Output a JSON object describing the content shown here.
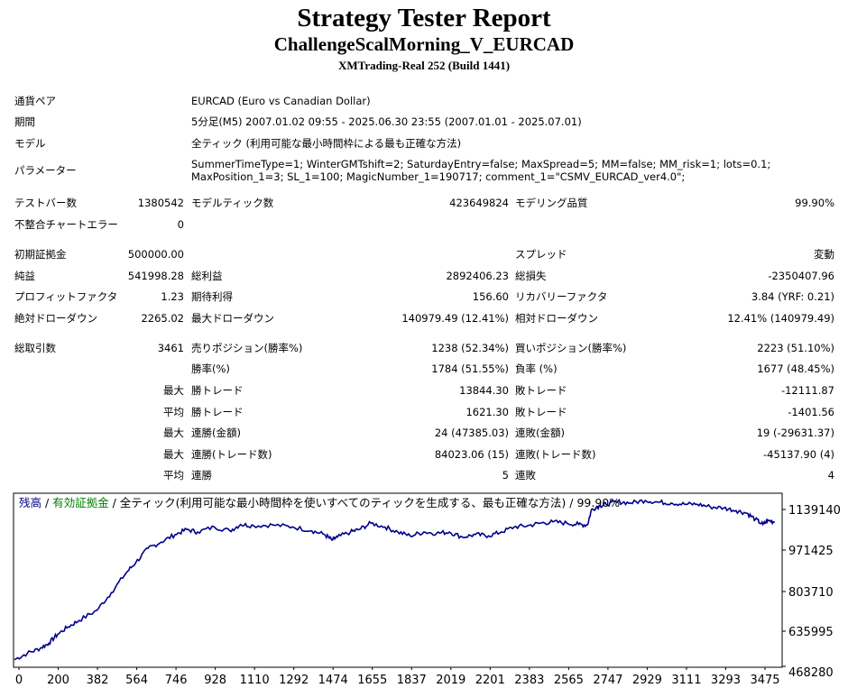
{
  "header": {
    "title": "Strategy Tester Report",
    "subtitle": "ChallengeScalMorning_V_EURCAD",
    "server": "XMTrading-Real 252 (Build 1441)"
  },
  "info": {
    "symbol_label": "通貨ペア",
    "symbol": "EURCAD (Euro vs Canadian Dollar)",
    "period_label": "期間",
    "period": "5分足(M5) 2007.01.02 09:55 - 2025.06.30 23:55 (2007.01.01 - 2025.07.01)",
    "model_label": "モデル",
    "model": "全ティック (利用可能な最小時間枠による最も正確な方法)",
    "params_label": "パラメーター",
    "params": "SummerTimeType=1; WinterGMTshift=2; SaturdayEntry=false; MaxSpread=5; MM=false; MM_risk=1; lots=0.1; MaxPosition_1=3; SL_1=100; MagicNumber_1=190717; comment_1=\"CSMV_EURCAD_ver4.0\";"
  },
  "test": {
    "bars_label": "テストバー数",
    "bars": "1380542",
    "ticks_label": "モデルティック数",
    "ticks": "423649824",
    "quality_label": "モデリング品質",
    "quality": "99.90%",
    "mismatch_label": "不整合チャートエラー",
    "mismatch": "0"
  },
  "results": {
    "deposit_label": "初期証拠金",
    "deposit": "500000.00",
    "spread_label": "スプレッド",
    "spread": "変動",
    "net_label": "純益",
    "net": "541998.28",
    "gross_profit_label": "総利益",
    "gross_profit": "2892406.23",
    "gross_loss_label": "総損失",
    "gross_loss": "-2350407.96",
    "pf_label": "プロフィットファクタ",
    "pf": "1.23",
    "expected_label": "期待利得",
    "expected": "156.60",
    "recovery_label": "リカバリーファクタ",
    "recovery": "3.84 (YRF: 0.21)",
    "abs_dd_label": "絶対ドローダウン",
    "abs_dd": "2265.02",
    "max_dd_label": "最大ドローダウン",
    "max_dd": "140979.49 (12.41%)",
    "rel_dd_label": "相対ドローダウン",
    "rel_dd": "12.41% (140979.49)"
  },
  "trades": {
    "total_label": "総取引数",
    "total": "3461",
    "short_label": "売りポジション(勝率%)",
    "short": "1238 (52.34%)",
    "long_label": "買いポジション(勝率%)",
    "long": "2223 (51.10%)",
    "win_rate_label": "勝率(%)",
    "win_rate": "1784 (51.55%)",
    "loss_rate_label": "負率 (%)",
    "loss_rate": "1677 (48.45%)",
    "max_label": "最大",
    "avg_label": "平均",
    "win_trade_label": "勝トレード",
    "loss_trade_label": "敗トレード",
    "max_win": "13844.30",
    "max_loss": "-12111.87",
    "avg_win": "1621.30",
    "avg_loss": "-1401.56",
    "consec_win_amt_label": "連勝(金額)",
    "consec_win_amt": "24 (47385.03)",
    "consec_loss_amt_label": "連敗(金額)",
    "consec_loss_amt": "19 (-29631.37)",
    "consec_win_cnt_label": "連勝(トレード数)",
    "consec_win_cnt": "84023.06 (15)",
    "consec_loss_cnt_label": "連敗(トレード数)",
    "consec_loss_cnt": "-45137.90 (4)",
    "avg_consec_win_label": "連勝",
    "avg_consec_win": "5",
    "avg_consec_loss_label": "連敗",
    "avg_consec_loss": "4"
  },
  "chart_data": {
    "type": "line",
    "legend": {
      "balance": "残高",
      "sep1": " / ",
      "equity": "有効証拠金",
      "sep2": " / ",
      "model": "全ティック(利用可能な最小時間枠を使いすべてのティックを生成する、最も正確な方法)",
      "sep3": " / ",
      "quality": "99.90%"
    },
    "colors": {
      "balance": "#00008b",
      "equity": "#008000",
      "frame": "#000000"
    },
    "x_ticks": [
      0,
      200,
      382,
      564,
      746,
      928,
      1110,
      1292,
      1474,
      1655,
      1837,
      2019,
      2201,
      2383,
      2565,
      2747,
      2929,
      3111,
      3293,
      3475
    ],
    "y_ticks": [
      1139140,
      971425,
      803710,
      635995,
      468280
    ],
    "xlim": [
      0,
      3560
    ],
    "ylim": [
      468280,
      1150000
    ],
    "series": [
      {
        "name": "残高",
        "x": [
          0,
          60,
          120,
          160,
          200,
          250,
          300,
          382,
          450,
          520,
          564,
          620,
          680,
          746,
          800,
          850,
          928,
          1000,
          1050,
          1110,
          1200,
          1292,
          1380,
          1440,
          1474,
          1500,
          1560,
          1600,
          1655,
          1720,
          1780,
          1837,
          1900,
          1960,
          2019,
          2080,
          2140,
          2201,
          2260,
          2320,
          2383,
          2440,
          2500,
          2565,
          2620,
          2660,
          2680,
          2720,
          2747,
          2800,
          2860,
          2929,
          2990,
          3050,
          3111,
          3170,
          3230,
          3293,
          3350,
          3400,
          3440,
          3475,
          3500,
          3530
        ],
        "y": [
          495000,
          520000,
          540000,
          560000,
          595000,
          625000,
          650000,
          690000,
          760000,
          840000,
          880000,
          935000,
          960000,
          990000,
          1010000,
          1000000,
          1020000,
          1005000,
          1030000,
          1025000,
          1028000,
          1020000,
          1005000,
          990000,
          968000,
          980000,
          1000000,
          1010000,
          1035000,
          1020000,
          1000000,
          985000,
          1000000,
          995000,
          1000000,
          980000,
          990000,
          985000,
          1000000,
          1020000,
          1025000,
          1035000,
          1040000,
          1035000,
          1030000,
          1028000,
          1090000,
          1105000,
          1110000,
          1120000,
          1115000,
          1125000,
          1118000,
          1115000,
          1110000,
          1110000,
          1100000,
          1095000,
          1085000,
          1075000,
          1050000,
          1030000,
          1045000,
          1040000
        ]
      }
    ]
  }
}
